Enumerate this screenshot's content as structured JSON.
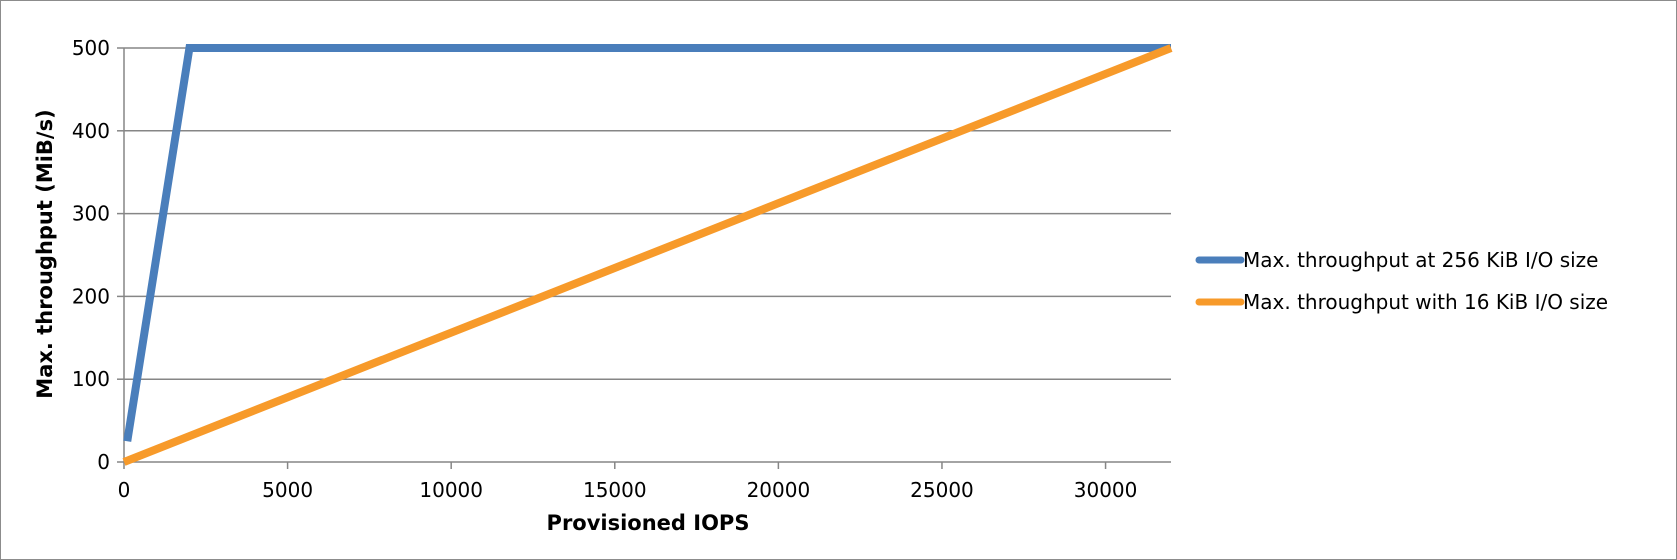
{
  "chart_data": {
    "type": "line",
    "title": "",
    "xlabel": "Provisioned IOPS",
    "ylabel": "Max. throughput (MiB/s)",
    "xlim": [
      0,
      32000
    ],
    "ylim": [
      0,
      500
    ],
    "x_ticks": [
      "0",
      "5000",
      "10000",
      "15000",
      "20000",
      "25000",
      "30000"
    ],
    "y_ticks": [
      "0",
      "100",
      "200",
      "300",
      "400",
      "500"
    ],
    "grid": "horizontal",
    "legend_position": "right",
    "series": [
      {
        "name": "Max. throughput at 256 KiB I/O size",
        "color": "#4a7ebb",
        "points": [
          [
            100,
            25
          ],
          [
            2000,
            500
          ],
          [
            32000,
            500
          ]
        ]
      },
      {
        "name": "Max. throughput with 16 KiB I/O size",
        "color": "#f79a2a",
        "points": [
          [
            0,
            0
          ],
          [
            32000,
            500
          ]
        ]
      }
    ]
  }
}
